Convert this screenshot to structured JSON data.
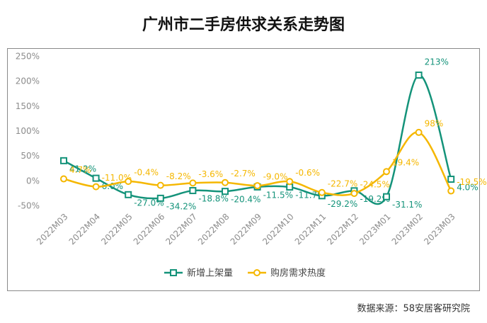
{
  "chart_data": {
    "type": "line",
    "title": "广州市二手房供求关系走势图",
    "categories": [
      "2022M03",
      "2022M04",
      "2022M05",
      "2022M06",
      "2022M07",
      "2022M08",
      "2022M09",
      "2022M10",
      "2022M11",
      "2022M12",
      "2023M01",
      "2023M02",
      "2023M03"
    ],
    "series": [
      {
        "name": "新增上架量",
        "color": "#14937a",
        "values": [
          41.2,
          6.0,
          -27.0,
          -34.2,
          -18.8,
          -20.4,
          -11.5,
          -11.7,
          -29.2,
          -19.2,
          -31.1,
          213,
          4.0
        ],
        "value_labels": [
          "41.2%",
          "6.0%",
          "-27.0%",
          "-34.2%",
          "-18.8%",
          "-20.4%",
          "-11.5%",
          "-11.7%",
          "-29.2%",
          "-19.2%",
          "-31.1%",
          "213%",
          "4.0%"
        ]
      },
      {
        "name": "购房需求热度",
        "color": "#f5b700",
        "values": [
          4.7,
          -11.0,
          -0.4,
          -8.2,
          -3.6,
          -2.7,
          -9.0,
          -0.6,
          -22.7,
          -24.5,
          19.4,
          98,
          -19.5
        ],
        "value_labels": [
          "4.7%",
          "-11.0%",
          "-0.4%",
          "-8.2%",
          "-3.6%",
          "-2.7%",
          "-9.0%",
          "-0.6%",
          "-22.7%",
          "-24.5%",
          "19.4%",
          "98%",
          "-19.5%"
        ]
      }
    ],
    "ylim": [
      -50,
      250
    ],
    "yticks": [
      {
        "value": -50,
        "label": "-50%"
      },
      {
        "value": 0,
        "label": "0%"
      },
      {
        "value": 50,
        "label": "50%"
      },
      {
        "value": 100,
        "label": "100%"
      },
      {
        "value": 150,
        "label": "150%"
      },
      {
        "value": 200,
        "label": "200%"
      },
      {
        "value": 250,
        "label": "250%"
      }
    ],
    "legend": "bottom",
    "source": "数据来源：58安居客研究院"
  }
}
